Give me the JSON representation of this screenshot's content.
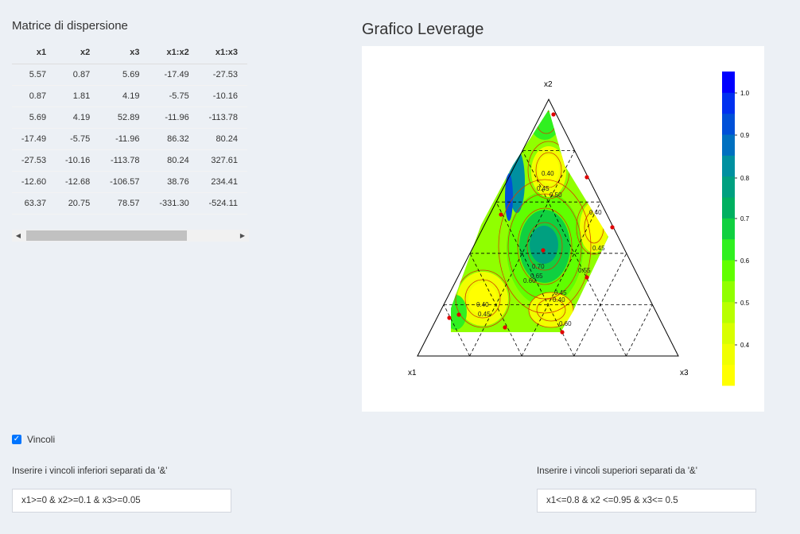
{
  "left_panel": {
    "title": "Matrice di dispersione",
    "table": {
      "headers": [
        "x1",
        "x2",
        "x3",
        "x1:x2",
        "x1:x3"
      ],
      "rows": [
        [
          "5.57",
          "0.87",
          "5.69",
          "-17.49",
          "-27.53"
        ],
        [
          "0.87",
          "1.81",
          "4.19",
          "-5.75",
          "-10.16"
        ],
        [
          "5.69",
          "4.19",
          "52.89",
          "-11.96",
          "-113.78"
        ],
        [
          "-17.49",
          "-5.75",
          "-11.96",
          "86.32",
          "80.24"
        ],
        [
          "-27.53",
          "-10.16",
          "-113.78",
          "80.24",
          "327.61"
        ],
        [
          "-12.60",
          "-12.68",
          "-106.57",
          "38.76",
          "234.41"
        ],
        [
          "63.37",
          "20.75",
          "78.57",
          "-331.30",
          "-524.11"
        ]
      ]
    }
  },
  "plot": {
    "title": "Grafico Leverage"
  },
  "chart_data": {
    "type": "heatmap",
    "subtype": "ternary contour",
    "vertex_labels": [
      "x1",
      "x2",
      "x3"
    ],
    "colorbar_ticks": [
      "1.0",
      "0.9",
      "0.8",
      "0.7",
      "0.6",
      "0.5",
      "0.4"
    ],
    "contour_levels": [
      "0.40",
      "0.45",
      "0.50",
      "0.55",
      "0.60",
      "0.65",
      "0.70"
    ],
    "region_constraints": {
      "x1": [
        0,
        0.8
      ],
      "x2": [
        0.1,
        0.95
      ],
      "x3": [
        0.05,
        0.5
      ]
    },
    "colors": {
      "low": "#ffff00",
      "high": "#0000ff",
      "scale": [
        "#ffff00",
        "#f0ff00",
        "#d8ff00",
        "#b8ff00",
        "#90ff00",
        "#60ff00",
        "#30f020",
        "#10d040",
        "#00b060",
        "#00a080",
        "#0090a0",
        "#0070c0",
        "#0050d8",
        "#0030f0",
        "#0000ff"
      ],
      "contour_line": "#d04000",
      "design_point": "#e00000"
    }
  },
  "constraints": {
    "checkbox_label": "Vincoli",
    "checked": true,
    "lower_label": "Inserire i vincoli inferiori separati da '&'",
    "lower_value": "x1>=0 & x2>=0.1 & x3>=0.05",
    "upper_label": "Inserire i vincoli superiori separati da '&'",
    "upper_value": "x1<=0.8 & x2 <=0.95 & x3<= 0.5"
  }
}
